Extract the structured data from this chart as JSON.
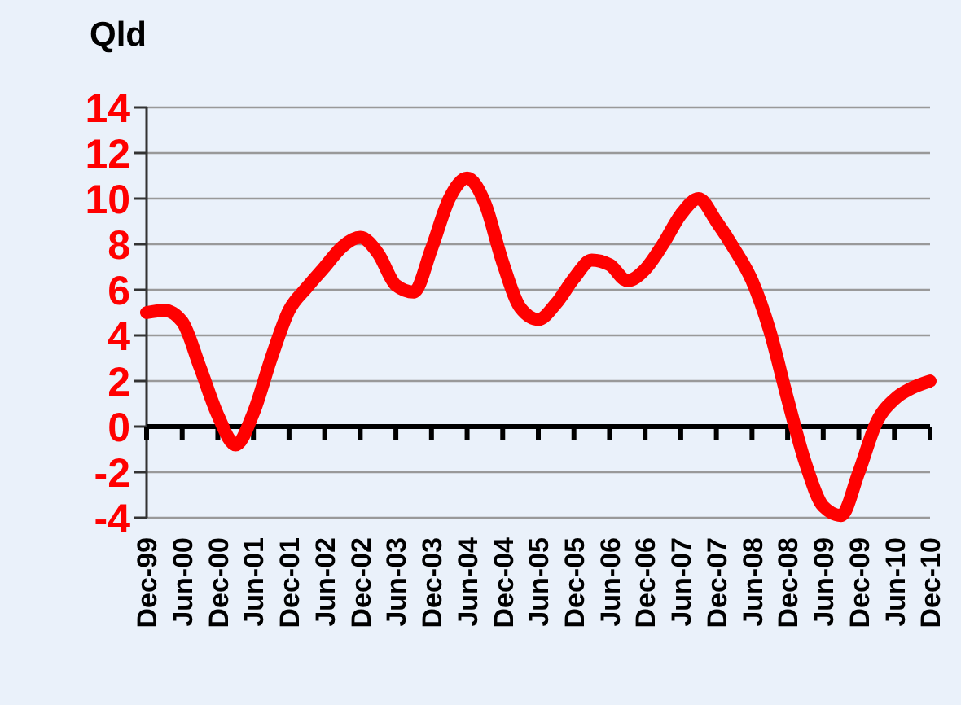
{
  "chart_data": {
    "type": "line",
    "title": "Qld",
    "categories": [
      "Dec-99",
      null,
      "Jun-00",
      null,
      "Dec-00",
      null,
      "Jun-01",
      null,
      "Dec-01",
      null,
      "Jun-02",
      null,
      "Dec-02",
      null,
      "Jun-03",
      null,
      "Dec-03",
      null,
      "Jun-04",
      null,
      "Dec-04",
      null,
      "Jun-05",
      null,
      "Dec-05",
      null,
      "Jun-06",
      null,
      "Dec-06",
      null,
      "Jun-07",
      null,
      "Dec-07",
      null,
      "Jun-08",
      null,
      "Dec-08",
      null,
      "Jun-09",
      null,
      "Dec-09",
      null,
      "Jun-10",
      null,
      "Dec-10"
    ],
    "series": [
      {
        "color": "#ff0000",
        "values": [
          5.0,
          5.1,
          4.6,
          2.6,
          0.5,
          -0.8,
          0.6,
          3.0,
          5.1,
          6.1,
          7.0,
          7.9,
          8.3,
          7.6,
          6.2,
          5.9,
          7.8,
          10.0,
          10.9,
          9.8,
          7.2,
          5.2,
          4.7,
          5.4,
          6.5,
          7.3,
          7.1,
          6.4,
          6.9,
          8.0,
          9.3,
          10.0,
          9.0,
          7.8,
          6.4,
          4.2,
          1.2,
          -1.6,
          -3.5,
          -3.9,
          -2.0,
          0.2,
          1.2,
          1.7,
          2.0
        ]
      }
    ],
    "ylim": [
      -4,
      14
    ],
    "yticks": [
      -4,
      -2,
      0,
      2,
      4,
      6,
      8,
      10,
      12,
      14
    ],
    "grid": "y",
    "marker": "none",
    "line_style": "solid"
  }
}
